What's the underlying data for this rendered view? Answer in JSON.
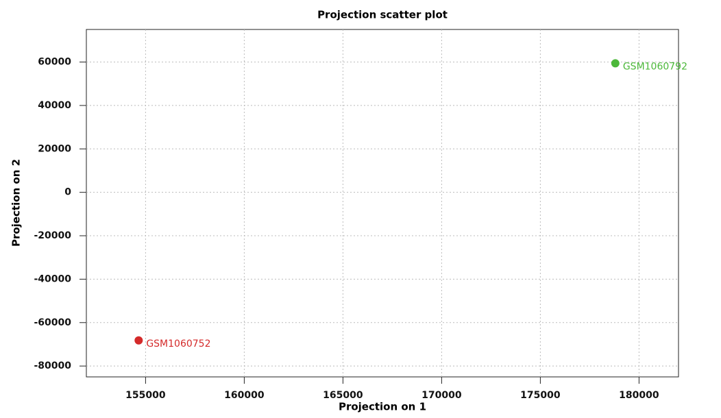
{
  "chart_data": {
    "type": "scatter",
    "title": "Projection scatter plot",
    "x_label": "Projection on 1",
    "y_label": "Projection on 2",
    "xlim": [
      152000,
      182000
    ],
    "xticks": [
      155000,
      160000,
      165000,
      170000,
      175000,
      180000
    ],
    "ylim": [
      -85000,
      75000
    ],
    "yticks": [
      -80000,
      -60000,
      -40000,
      -20000,
      0,
      20000,
      40000,
      60000
    ],
    "grid": true,
    "series": [
      {
        "name": "GSM1060752",
        "color": "#d42a2a",
        "x": [
          154650
        ],
        "values": [
          -68200
        ]
      },
      {
        "name": "GSM1060792",
        "color": "#4cb83a",
        "x": [
          178800
        ],
        "values": [
          59400
        ]
      }
    ]
  }
}
